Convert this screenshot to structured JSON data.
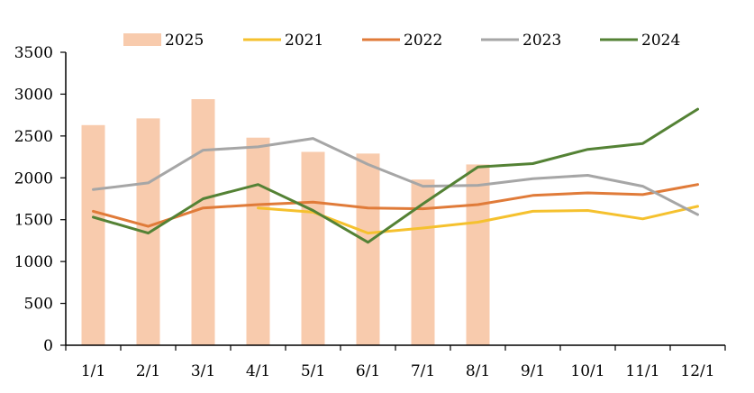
{
  "chart_data": {
    "type": "bar",
    "title": "",
    "xlabel": "",
    "ylabel": "",
    "categories": [
      "1/1",
      "2/1",
      "3/1",
      "4/1",
      "5/1",
      "6/1",
      "7/1",
      "8/1",
      "9/1",
      "10/1",
      "11/1",
      "12/1"
    ],
    "y_ticks": [
      "0",
      "500",
      "1000",
      "1500",
      "2000",
      "2500",
      "3000",
      "3500"
    ],
    "ylim": [
      0,
      3500
    ],
    "grid": false,
    "legend_position": "top",
    "bar_series": {
      "name": "2025",
      "color": "#f8cbad",
      "values": [
        2630,
        2710,
        2940,
        2480,
        2310,
        2290,
        1980,
        2160,
        null,
        null,
        null,
        null
      ]
    },
    "line_series": [
      {
        "name": "2021",
        "color": "#f5c12e",
        "values": [
          null,
          null,
          null,
          1640,
          1590,
          1340,
          1400,
          1470,
          1600,
          1610,
          1510,
          1660
        ]
      },
      {
        "name": "2022",
        "color": "#e07b39",
        "values": [
          1600,
          1420,
          1640,
          1680,
          1710,
          1640,
          1630,
          1680,
          1790,
          1820,
          1800,
          1920
        ]
      },
      {
        "name": "2023",
        "color": "#a6a6a6",
        "values": [
          1860,
          1940,
          2330,
          2370,
          2470,
          2160,
          1900,
          1910,
          1990,
          2030,
          1900,
          1560
        ]
      },
      {
        "name": "2024",
        "color": "#548235",
        "values": [
          1530,
          1340,
          1750,
          1920,
          1610,
          1230,
          1690,
          2130,
          2170,
          2340,
          2410,
          2820
        ]
      }
    ]
  }
}
